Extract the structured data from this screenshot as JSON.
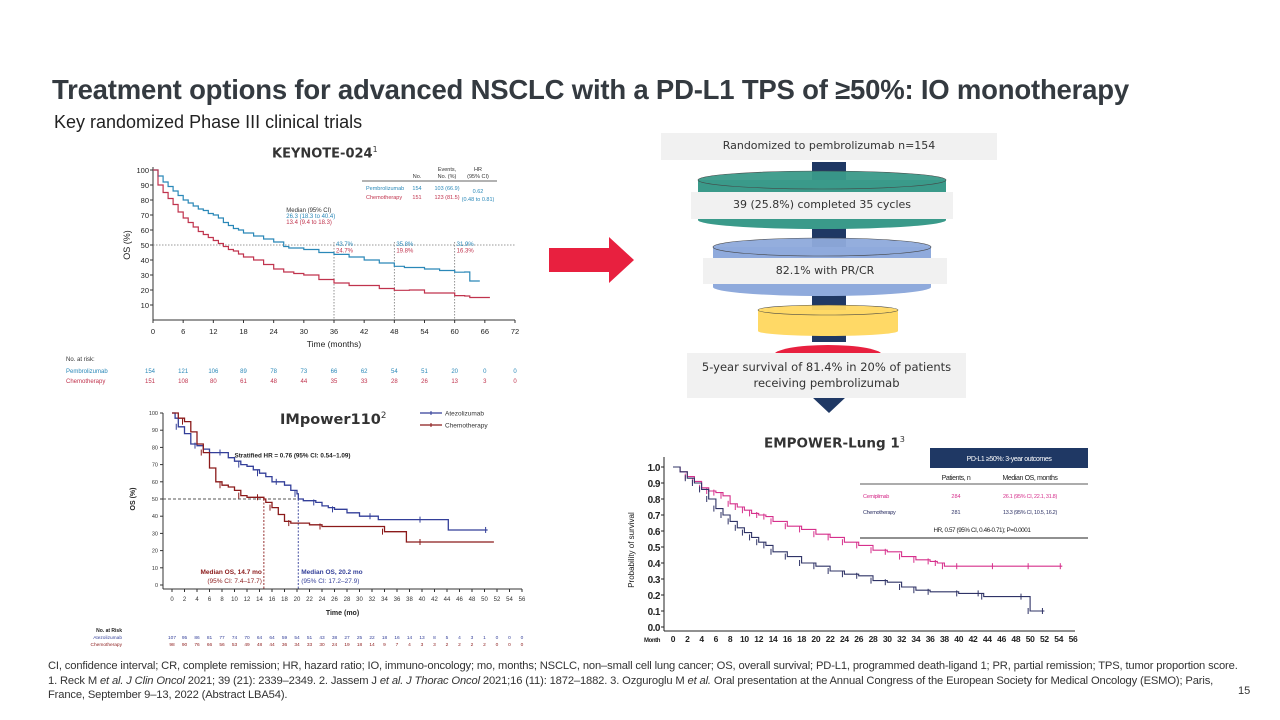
{
  "slide": {
    "title": "Treatment options for advanced NSCLC with a PD-L1 TPS of ≥50%: IO monotherapy",
    "subtitle": "Key randomized  Phase III clinical trials",
    "page_number": "15",
    "footnote_parts": [
      {
        "t": "CI, confidence interval; CR, complete remission; HR, hazard ratio; IO,  immuno-oncology; mo, months; NSCLC, non–small cell lung cancer; OS, overall survival;  PD-L1, programmed death-ligand 1; PR, partial remission; TPS, tumor proportion score. 1. Reck M  ",
        "i": false
      },
      {
        "t": "et al. J Clin Oncol",
        "i": true
      },
      {
        "t": " 2021; 39 (21): 2339–2349. 2. Jassem J ",
        "i": false
      },
      {
        "t": "et al. J Thorac Oncol",
        "i": true
      },
      {
        "t": " 2021;16 (11): 1872–1882. 3. Ozguroglu M  ",
        "i": false
      },
      {
        "t": "et al.",
        "i": true
      },
      {
        "t": " Oral presentation at the Annual Congress of the European Society for Medical Oncology (ESMO);  Paris, France, September 9–13, 2022 (Abstract LBA54).",
        "i": false
      }
    ]
  },
  "colors": {
    "pembro": "#2a88b8",
    "chemo_kn": "#c0334d",
    "atezo": "#333f99",
    "chemo_imp": "#8b1a1a",
    "cemip": "#d6308c",
    "chemo_emp": "#2f3366",
    "arrow_red": "#e8203f",
    "funnel_teal": "#3a9a8a",
    "funnel_blue": "#8faadc",
    "funnel_yellow": "#ffd966",
    "funnel_red": "#e8203f",
    "navy": "#1f3864"
  },
  "funnel": {
    "steps": [
      "Randomized  to pembrolizumab  n=154",
      "39 (25.8%)  completed  35 cycles",
      "82.1% with PR/CR",
      "5-year survival  of 81.4% in 20% of patients receiving pembrolizumab"
    ]
  },
  "chart_data": [
    {
      "id": "keynote024",
      "type": "line",
      "title": "KEYNOTE-024",
      "title_sup": "1",
      "xlabel": "Time (months)",
      "ylabel": "OS (%)",
      "xlim": [
        0,
        72
      ],
      "ylim": [
        0,
        100
      ],
      "xticks": [
        0,
        6,
        12,
        18,
        24,
        30,
        36,
        42,
        48,
        54,
        60,
        66,
        72
      ],
      "yticks": [
        10,
        20,
        30,
        40,
        50,
        60,
        70,
        80,
        90,
        100
      ],
      "reference_lines": {
        "y": 50,
        "x": [
          36,
          48,
          60
        ]
      },
      "median_header": "Median (95% CI)",
      "medians": [
        "26.3 (18.3 to 40.4)",
        "13.4 (9.4 to 18.3)"
      ],
      "landmarks": [
        {
          "x": 36,
          "pembro": "43.7%",
          "chemo": "24.7%"
        },
        {
          "x": 48,
          "pembro": "35.8%",
          "chemo": "19.8%"
        },
        {
          "x": 60,
          "pembro": "31.9%",
          "chemo": "16.3%"
        }
      ],
      "table": {
        "headers": [
          "No.",
          "Events, No. (%)",
          "HR (95% CI)"
        ],
        "rows": [
          {
            "name": "Pembrolizumab",
            "no": "154",
            "events": "103 (66.9)"
          },
          {
            "name": "Chemotherapy",
            "no": "151",
            "events": "123 (81.5)"
          }
        ],
        "hr": "0.62",
        "hr_ci": "(0.48 to 0.81)"
      },
      "series": [
        {
          "name": "Pembrolizumab",
          "color_key": "pembro",
          "x": [
            0,
            1,
            2,
            3,
            4,
            5,
            6,
            7,
            8,
            9,
            10,
            11,
            12,
            13,
            14,
            15,
            16,
            17,
            18,
            20,
            22,
            24,
            26,
            27,
            30,
            33,
            36,
            39,
            42,
            45,
            48,
            50,
            54,
            57,
            60,
            62,
            63,
            65
          ],
          "y": [
            100,
            96,
            92,
            89,
            86,
            83,
            80,
            78,
            76,
            74,
            73,
            71,
            70,
            68,
            65,
            63,
            61,
            60,
            58,
            56,
            54,
            52,
            49,
            48,
            47,
            45,
            43.7,
            42,
            40,
            38,
            35.8,
            35,
            34,
            33,
            31.9,
            32,
            26,
            26
          ]
        },
        {
          "name": "Chemotherapy",
          "color_key": "chemo_kn",
          "x": [
            0,
            1,
            2,
            3,
            4,
            5,
            6,
            7,
            8,
            9,
            10,
            11,
            12,
            13,
            14,
            15,
            16,
            17,
            18,
            20,
            22,
            24,
            26,
            28,
            30,
            33,
            36,
            39,
            42,
            45,
            48,
            51,
            54,
            57,
            60,
            62,
            63,
            67
          ],
          "y": [
            100,
            90,
            85,
            81,
            77,
            72,
            68,
            65,
            62,
            59,
            57,
            55,
            53,
            51,
            49,
            47,
            46,
            44,
            42,
            40,
            37,
            34,
            32,
            31,
            30,
            27,
            24.7,
            23,
            23,
            21,
            19.8,
            20,
            18,
            18,
            16.3,
            16,
            15,
            15
          ]
        }
      ],
      "at_risk": {
        "label": "No. at risk:",
        "rows": [
          {
            "name": "Pembrolizumab",
            "color_key": "pembro",
            "values": [
              "154",
              "121",
              "106",
              "89",
              "78",
              "73",
              "66",
              "62",
              "54",
              "51",
              "20",
              "0",
              "0"
            ]
          },
          {
            "name": "Chemotherapy",
            "color_key": "chemo_kn",
            "values": [
              "151",
              "108",
              "80",
              "61",
              "48",
              "44",
              "35",
              "33",
              "28",
              "26",
              "13",
              "3",
              "0"
            ]
          }
        ]
      }
    },
    {
      "id": "impower110",
      "type": "line",
      "title": "IMpower110",
      "title_sup": "2",
      "xlabel": "Time (mo)",
      "ylabel": "OS (%)",
      "xlim": [
        0,
        56
      ],
      "ylim": [
        0,
        100
      ],
      "xticks": [
        0,
        2,
        4,
        6,
        8,
        10,
        12,
        14,
        16,
        18,
        20,
        22,
        24,
        26,
        28,
        30,
        32,
        34,
        36,
        38,
        40,
        42,
        44,
        46,
        48,
        50,
        52,
        54,
        56
      ],
      "yticks": [
        0,
        10,
        20,
        30,
        40,
        50,
        60,
        70,
        80,
        90,
        100
      ],
      "hr_text": "Stratified HR = 0.76 (95% CI: 0.54–1.09)",
      "legend": [
        "Atezolizumab",
        "Chemotherapy"
      ],
      "legend_position": "top-right",
      "medians": [
        {
          "label": "Median OS, 14.7 mo",
          "ci": "(95% CI: 7.4–17.7)",
          "x": 14.7,
          "color_key": "chemo_imp"
        },
        {
          "label": "Median OS, 20.2 mo",
          "ci": "(95% CI: 17.2–27.9)",
          "x": 20.2,
          "color_key": "atezo"
        }
      ],
      "series": [
        {
          "name": "Atezolizumab",
          "color_key": "atezo",
          "x": [
            0,
            0.5,
            1,
            2,
            3,
            4,
            5,
            6,
            8,
            9,
            10,
            11,
            12,
            13,
            14,
            15,
            16,
            17,
            18,
            19,
            20,
            20.2,
            21,
            23,
            24,
            25,
            26,
            28,
            30,
            32,
            33,
            36,
            40,
            44,
            44.2,
            50.5
          ],
          "y": [
            100,
            97,
            92,
            88,
            82,
            81,
            79,
            77,
            77,
            74,
            72,
            70,
            69,
            67,
            65,
            63,
            60,
            60,
            58,
            55,
            53,
            50,
            49,
            48,
            46,
            45,
            44,
            42,
            40,
            40,
            38,
            38,
            38,
            38,
            32,
            32
          ]
        },
        {
          "name": "Chemotherapy",
          "color_key": "chemo_imp",
          "x": [
            0,
            1,
            2,
            3,
            4,
            5,
            6,
            7,
            8,
            9,
            10,
            11,
            12,
            13,
            14,
            14.7,
            15,
            16,
            17,
            18,
            19,
            20,
            22,
            24,
            30,
            32,
            34,
            37,
            37.5,
            40,
            51.5
          ],
          "y": [
            100,
            97,
            95,
            89,
            82,
            77,
            68,
            60,
            58,
            57,
            55,
            52,
            51,
            51,
            51,
            50,
            48,
            45,
            41,
            37,
            36,
            36,
            35,
            34,
            34,
            34,
            31,
            31,
            25,
            25,
            25
          ]
        }
      ],
      "at_risk": {
        "label": "No. at Risk",
        "rows": [
          {
            "name": "Atezolizumab",
            "color_key": "atezo",
            "values": [
              "107",
              "95",
              "86",
              "81",
              "77",
              "74",
              "70",
              "64",
              "64",
              "59",
              "54",
              "51",
              "43",
              "38",
              "27",
              "25",
              "22",
              "18",
              "16",
              "14",
              "13",
              "8",
              "5",
              "4",
              "3",
              "1",
              "0",
              "0",
              "0"
            ]
          },
          {
            "name": "Chemotherapy",
            "color_key": "chemo_imp",
            "values": [
              "98",
              "90",
              "76",
              "66",
              "56",
              "53",
              "49",
              "48",
              "44",
              "36",
              "34",
              "33",
              "30",
              "24",
              "19",
              "18",
              "14",
              "9",
              "7",
              "4",
              "3",
              "3",
              "2",
              "2",
              "2",
              "2",
              "0",
              "0",
              "0"
            ]
          }
        ]
      }
    },
    {
      "id": "empower_lung1",
      "type": "line",
      "title": "EMPOWER-Lung 1",
      "title_sup": "3",
      "xlabel": "Month",
      "ylabel": "Probability of survival",
      "xlim": [
        0,
        56
      ],
      "ylim": [
        0,
        1.0
      ],
      "xticks": [
        0,
        2,
        4,
        6,
        8,
        10,
        12,
        14,
        16,
        18,
        20,
        22,
        24,
        26,
        28,
        30,
        32,
        34,
        36,
        38,
        40,
        42,
        44,
        46,
        48,
        50,
        52,
        54,
        56
      ],
      "yticks": [
        "0.0",
        "0.1",
        "0.2",
        "0.3",
        "0.4",
        "0.5",
        "0.6",
        "0.7",
        "0.8",
        "0.9",
        "1.0"
      ],
      "table": {
        "header": "PD-L1 ≥50%: 3-year outcomes",
        "columns": [
          "Patients, n",
          "Median OS, months"
        ],
        "rows": [
          {
            "name": "Cemiplimab",
            "color_key": "cemip",
            "n": "284",
            "os": "26.1 (95% CI, 22.1, 31.8)"
          },
          {
            "name": "Chemotherapy",
            "color_key": "chemo_emp",
            "n": "281",
            "os": "13.3 (95% CI, 10.5, 16.2)"
          }
        ],
        "hr": "HR, 0.57 (95% CI, 0.46-0.71); P=0.0001"
      },
      "series": [
        {
          "name": "Cemiplimab",
          "color_key": "cemip",
          "x": [
            0,
            1,
            2,
            3,
            4,
            5,
            6,
            7,
            8,
            9,
            10,
            11,
            12,
            13,
            14,
            16,
            18,
            20,
            22,
            24,
            26,
            28,
            30,
            32,
            34,
            36,
            37,
            38,
            40,
            45,
            50,
            54.5
          ],
          "y": [
            1.0,
            0.97,
            0.94,
            0.91,
            0.87,
            0.85,
            0.84,
            0.82,
            0.77,
            0.75,
            0.73,
            0.71,
            0.7,
            0.69,
            0.66,
            0.63,
            0.61,
            0.58,
            0.56,
            0.53,
            0.51,
            0.48,
            0.47,
            0.44,
            0.42,
            0.41,
            0.4,
            0.38,
            0.38,
            0.38,
            0.38,
            0.38
          ]
        },
        {
          "name": "Chemotherapy",
          "color_key": "chemo_emp",
          "x": [
            0,
            1,
            2,
            3,
            4,
            5,
            6,
            7,
            8,
            9,
            10,
            11,
            12,
            13,
            14,
            16,
            18,
            20,
            22,
            24,
            26,
            28,
            30,
            32,
            34,
            36,
            40,
            43,
            43.5,
            49,
            50,
            52
          ],
          "y": [
            1.0,
            0.97,
            0.93,
            0.9,
            0.86,
            0.8,
            0.74,
            0.7,
            0.66,
            0.62,
            0.59,
            0.56,
            0.53,
            0.51,
            0.47,
            0.44,
            0.4,
            0.38,
            0.35,
            0.33,
            0.32,
            0.29,
            0.28,
            0.25,
            0.23,
            0.22,
            0.21,
            0.21,
            0.19,
            0.19,
            0.1,
            0.1
          ]
        }
      ]
    }
  ]
}
